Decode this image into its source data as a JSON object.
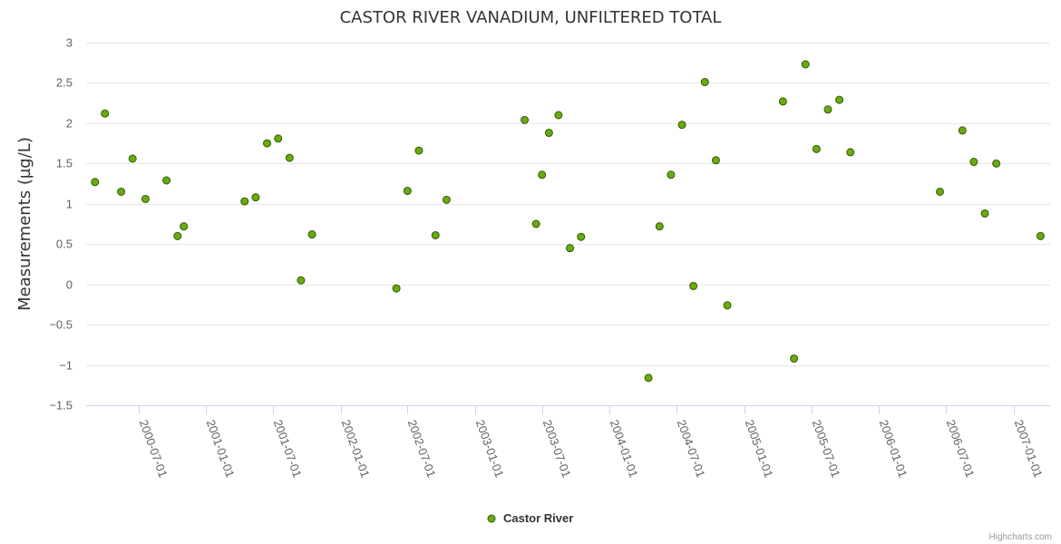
{
  "chart_data": {
    "type": "scatter",
    "title": "CASTOR RIVER VANADIUM, UNFILTERED TOTAL",
    "ylabel": "Measurements (µg/L)",
    "xlabel": "",
    "ylim": [
      -1.5,
      3
    ],
    "yticks": [
      "3",
      "2.5",
      "2",
      "1.5",
      "1",
      "0.5",
      "0",
      "−0.5",
      "−1",
      "−1.5"
    ],
    "yticks_values": [
      3,
      2.5,
      2,
      1.5,
      1,
      0.5,
      0,
      -0.5,
      -1,
      -1.5
    ],
    "xlim": [
      "2000-02-10",
      "2007-04-10"
    ],
    "xticks": [
      "2000-07-01",
      "2001-01-01",
      "2001-07-01",
      "2002-01-01",
      "2002-07-01",
      "2003-01-01",
      "2003-07-01",
      "2004-01-01",
      "2004-07-01",
      "2005-01-01",
      "2005-07-01",
      "2006-01-01",
      "2006-07-01",
      "2007-01-01"
    ],
    "grid": true,
    "legend_position": "bottom-center",
    "marker_color": "#6aaa11",
    "marker_stroke": "#2f5d00",
    "series": [
      {
        "name": "Castor River",
        "points": [
          {
            "x": "2000-03-05",
            "y": 1.27
          },
          {
            "x": "2000-04-01",
            "y": 2.12
          },
          {
            "x": "2000-05-15",
            "y": 1.15
          },
          {
            "x": "2000-06-15",
            "y": 1.56
          },
          {
            "x": "2000-07-20",
            "y": 1.06
          },
          {
            "x": "2000-09-15",
            "y": 1.29
          },
          {
            "x": "2000-10-15",
            "y": 0.6
          },
          {
            "x": "2000-11-01",
            "y": 0.72
          },
          {
            "x": "2001-04-15",
            "y": 1.03
          },
          {
            "x": "2001-05-15",
            "y": 1.08
          },
          {
            "x": "2001-06-15",
            "y": 1.75
          },
          {
            "x": "2001-07-15",
            "y": 1.81
          },
          {
            "x": "2001-08-15",
            "y": 1.57
          },
          {
            "x": "2001-09-15",
            "y": 0.05
          },
          {
            "x": "2001-10-15",
            "y": 0.62
          },
          {
            "x": "2002-06-01",
            "y": -0.05
          },
          {
            "x": "2002-07-01",
            "y": 1.16
          },
          {
            "x": "2002-08-01",
            "y": 1.66
          },
          {
            "x": "2002-09-15",
            "y": 0.61
          },
          {
            "x": "2002-10-15",
            "y": 1.05
          },
          {
            "x": "2003-05-15",
            "y": 2.04
          },
          {
            "x": "2003-06-15",
            "y": 0.75
          },
          {
            "x": "2003-07-01",
            "y": 1.36
          },
          {
            "x": "2003-07-20",
            "y": 1.88
          },
          {
            "x": "2003-08-15",
            "y": 2.1
          },
          {
            "x": "2003-09-15",
            "y": 0.45
          },
          {
            "x": "2003-10-15",
            "y": 0.59
          },
          {
            "x": "2004-04-15",
            "y": -1.16
          },
          {
            "x": "2004-05-15",
            "y": 0.72
          },
          {
            "x": "2004-06-15",
            "y": 1.36
          },
          {
            "x": "2004-07-15",
            "y": 1.98
          },
          {
            "x": "2004-08-15",
            "y": -0.02
          },
          {
            "x": "2004-09-15",
            "y": 2.51
          },
          {
            "x": "2004-10-15",
            "y": 1.54
          },
          {
            "x": "2004-11-15",
            "y": -0.26
          },
          {
            "x": "2005-04-15",
            "y": 2.27
          },
          {
            "x": "2005-05-15",
            "y": -0.92
          },
          {
            "x": "2005-06-15",
            "y": 2.73
          },
          {
            "x": "2005-07-15",
            "y": 1.68
          },
          {
            "x": "2005-08-15",
            "y": 2.17
          },
          {
            "x": "2005-09-15",
            "y": 2.29
          },
          {
            "x": "2005-10-15",
            "y": 1.64
          },
          {
            "x": "2006-06-15",
            "y": 1.15
          },
          {
            "x": "2006-08-15",
            "y": 1.91
          },
          {
            "x": "2006-09-15",
            "y": 1.52
          },
          {
            "x": "2006-10-15",
            "y": 0.88
          },
          {
            "x": "2006-11-15",
            "y": 1.5
          },
          {
            "x": "2007-03-15",
            "y": 0.6
          }
        ]
      }
    ]
  },
  "legend": {
    "label": "Castor River"
  },
  "credits": {
    "text": "Highcharts.com"
  }
}
